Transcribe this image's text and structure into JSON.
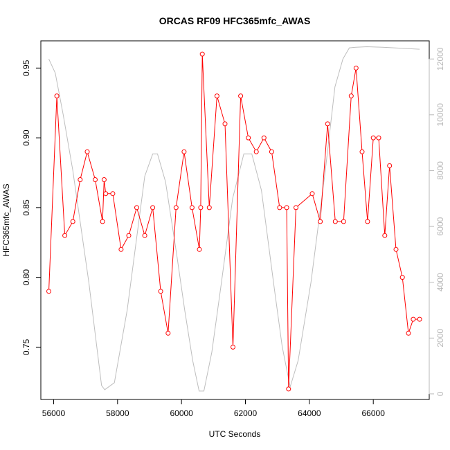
{
  "chart_data": {
    "type": "line",
    "title": "ORCAS RF09 HFC365mfc_AWAS",
    "xlabel": "UTC Seconds",
    "ylabel": "HFC365mfc_AWAS",
    "xlim": [
      55600,
      67750
    ],
    "ylim": [
      0.7125,
      0.9695
    ],
    "y2lim": [
      -200,
      12650
    ],
    "grid": false,
    "x_ticks": [
      56000,
      58000,
      60000,
      62000,
      64000,
      66000
    ],
    "y_ticks": [
      0.75,
      0.8,
      0.85,
      0.9,
      0.95
    ],
    "y2_ticks": [
      0,
      2000,
      4000,
      6000,
      8000,
      10000,
      12000
    ],
    "x_tick_labels": [
      "56000",
      "58000",
      "60000",
      "62000",
      "64000",
      "66000"
    ],
    "y_tick_labels": [
      "0.75",
      "0.80",
      "0.85",
      "0.90",
      "0.95"
    ],
    "y2_tick_labels": [
      "0",
      "2000",
      "4000",
      "6000",
      "8000",
      "10000",
      "12000"
    ],
    "series": [
      {
        "role": "primary",
        "color": "#ff0000",
        "marker": "open-circle",
        "x": [
          55850,
          56100,
          56350,
          56600,
          56830,
          57050,
          57300,
          57530,
          57580,
          57630,
          57850,
          58110,
          58350,
          58600,
          58850,
          59100,
          59350,
          59580,
          59830,
          60080,
          60330,
          60560,
          60600,
          60650,
          60870,
          61110,
          61360,
          61610,
          61850,
          62090,
          62340,
          62580,
          62820,
          63070,
          63290,
          63350,
          63580,
          64090,
          64340,
          64570,
          64810,
          65070,
          65310,
          65460,
          65650,
          65820,
          66000,
          66170,
          66360,
          66510,
          66710,
          66910,
          67100,
          67250,
          67450
        ],
        "values": [
          0.79,
          0.93,
          0.83,
          0.84,
          0.87,
          0.89,
          0.87,
          0.84,
          0.87,
          0.86,
          0.86,
          0.82,
          0.83,
          0.85,
          0.83,
          0.85,
          0.79,
          0.76,
          0.85,
          0.89,
          0.85,
          0.82,
          0.85,
          0.96,
          0.85,
          0.93,
          0.91,
          0.75,
          0.93,
          0.9,
          0.89,
          0.9,
          0.89,
          0.85,
          0.85,
          0.72,
          0.85,
          0.86,
          0.84,
          0.91,
          0.84,
          0.84,
          0.93,
          0.95,
          0.89,
          0.84,
          0.9,
          0.9,
          0.83,
          0.88,
          0.82,
          0.8,
          0.76,
          0.77,
          0.77
        ]
      },
      {
        "role": "secondary",
        "axis": "right",
        "color": "#bebebe",
        "x": [
          55850,
          56050,
          56300,
          56600,
          57100,
          57500,
          57600,
          57900,
          58300,
          58850,
          59100,
          59250,
          59500,
          59850,
          60100,
          60350,
          60550,
          60700,
          60950,
          61250,
          61600,
          61950,
          62200,
          62500,
          62900,
          63150,
          63400,
          63650,
          64050,
          64500,
          64800,
          65050,
          65250,
          65450,
          65800,
          66300,
          66800,
          67450
        ],
        "values": [
          12000,
          11500,
          10000,
          8000,
          4000,
          300,
          150,
          400,
          3000,
          7800,
          8600,
          8600,
          7600,
          5000,
          3000,
          1200,
          100,
          100,
          1500,
          4000,
          7000,
          8600,
          8600,
          7300,
          3800,
          1700,
          250,
          1200,
          4000,
          8000,
          11000,
          12000,
          12400,
          12420,
          12440,
          12420,
          12390,
          12350
        ]
      }
    ]
  }
}
